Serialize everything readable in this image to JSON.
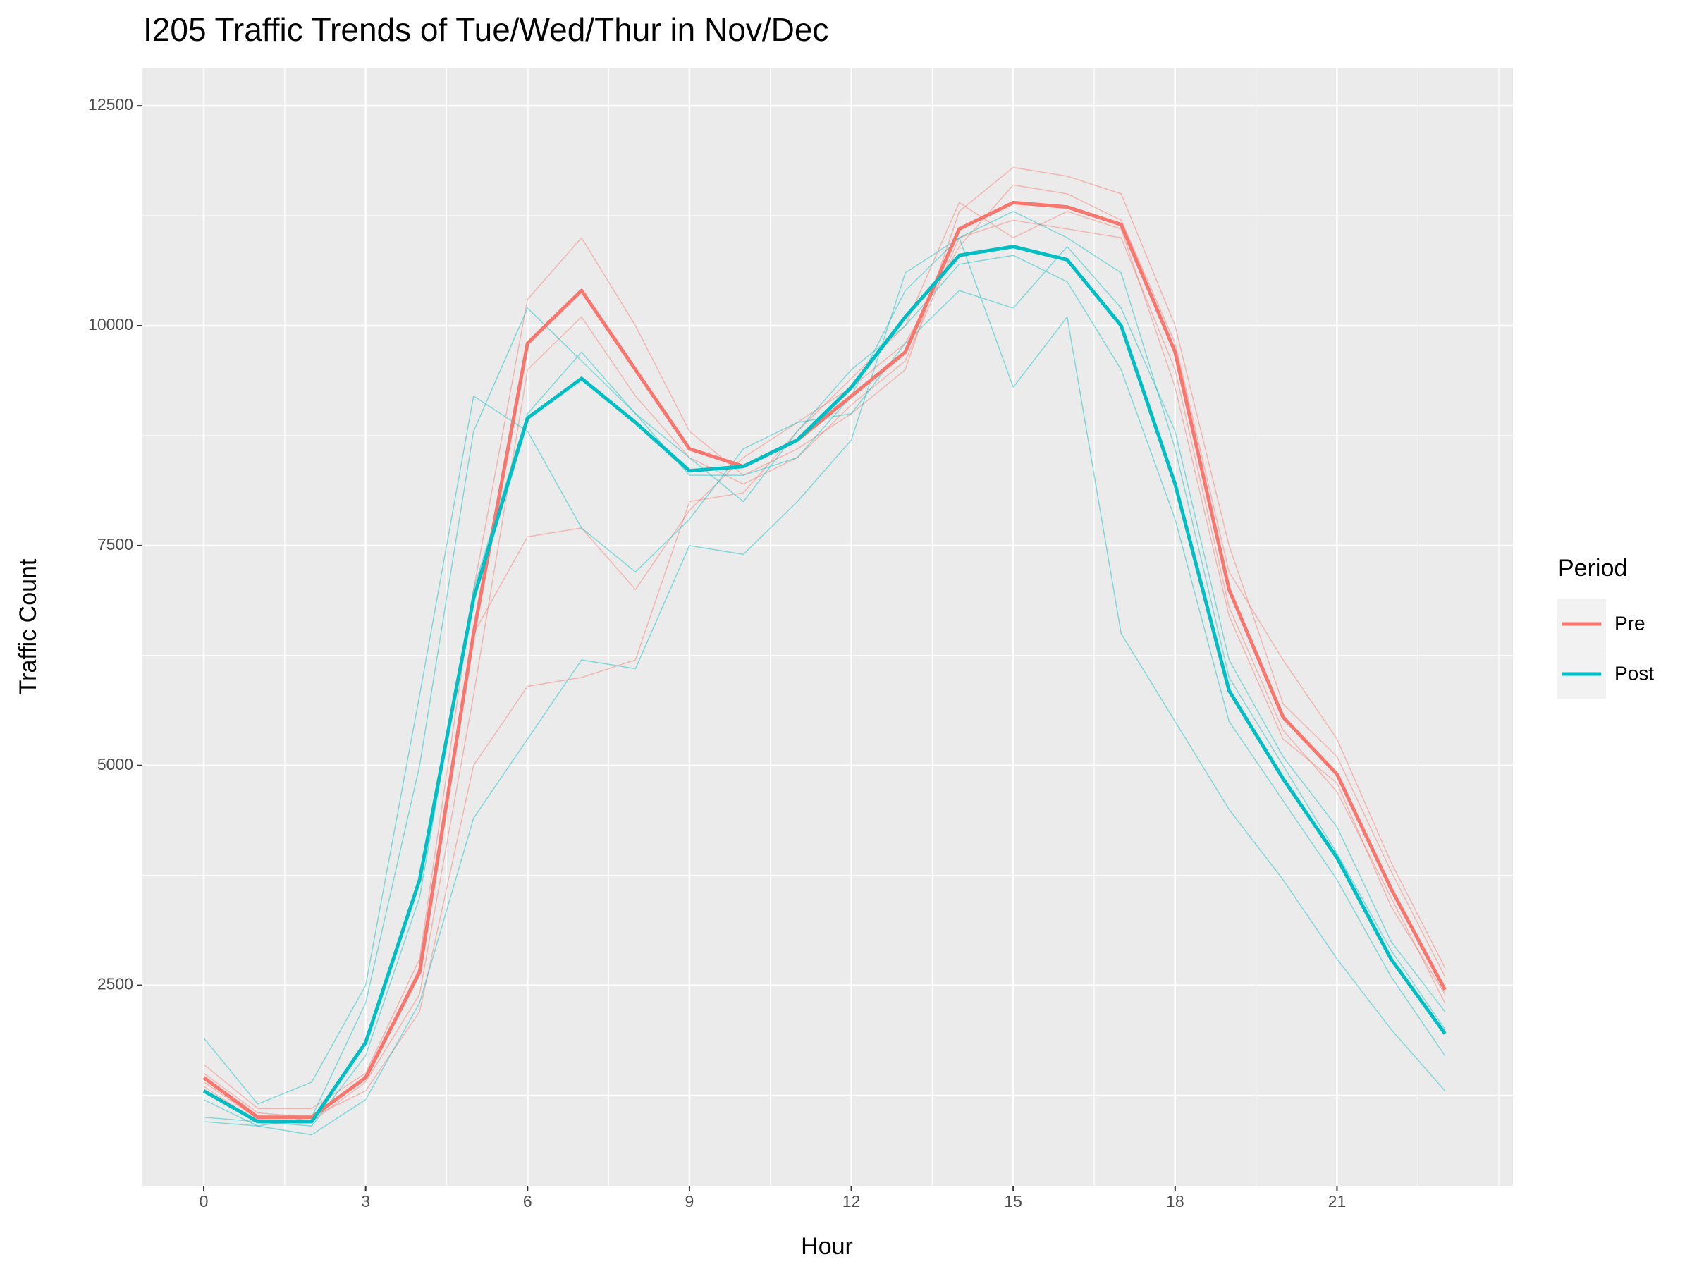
{
  "chart_data": {
    "type": "line",
    "title": "I205 Traffic Trends of Tue/Wed/Thur in Nov/Dec",
    "x_label": "Hour",
    "y_label": "Traffic Count",
    "x": [
      0,
      1,
      2,
      3,
      4,
      5,
      6,
      7,
      8,
      9,
      10,
      11,
      12,
      13,
      14,
      15,
      16,
      17,
      18,
      19,
      20,
      21,
      22,
      23
    ],
    "xlim": [
      -1.15,
      24.26
    ],
    "xticks": [
      0,
      3,
      6,
      9,
      12,
      15,
      18,
      21
    ],
    "ylim": [
      220,
      12934
    ],
    "yticks": [
      2500,
      5000,
      7500,
      10000,
      12500
    ],
    "grid": true,
    "legend_title": "Period",
    "legend": "right",
    "series": [
      {
        "name": "Pre",
        "color": "#f8766d",
        "values": [
          1450,
          1000,
          1000,
          1450,
          2650,
          6500,
          9800,
          10400,
          9500,
          8600,
          8400,
          8700,
          9200,
          9700,
          11100,
          11400,
          11350,
          11150,
          9700,
          7000,
          5550,
          4900,
          3600,
          2450
        ],
        "days": [
          [
            1600,
            1100,
            1100,
            1500,
            2800,
            7000,
            10300,
            11000,
            10000,
            8800,
            8300,
            8600,
            9000,
            9500,
            11300,
            11800,
            11700,
            11500,
            10000,
            7500,
            5700,
            5100,
            3800,
            2600
          ],
          [
            1350,
            950,
            950,
            1400,
            2400,
            5800,
            9500,
            10100,
            9200,
            8500,
            8200,
            8500,
            9100,
            9600,
            11000,
            11200,
            11100,
            11000,
            9500,
            6800,
            5400,
            4700,
            3500,
            2300
          ],
          [
            1500,
            1050,
            1000,
            1450,
            2700,
            6500,
            7600,
            7700,
            7000,
            7900,
            8500,
            8900,
            9300,
            9800,
            10900,
            11600,
            11500,
            11200,
            9800,
            7200,
            6200,
            5300,
            3900,
            2700
          ],
          [
            1400,
            980,
            1000,
            1300,
            2200,
            5000,
            5900,
            6000,
            6200,
            8000,
            8100,
            8800,
            9400,
            10000,
            11400,
            11000,
            11300,
            11100,
            9300,
            6700,
            5300,
            4800,
            3400,
            2400
          ]
        ]
      },
      {
        "name": "Post",
        "color": "#00bfc4",
        "values": [
          1300,
          950,
          950,
          1850,
          3700,
          6900,
          8950,
          9400,
          8900,
          8350,
          8400,
          8700,
          9300,
          10100,
          10800,
          10900,
          10750,
          10000,
          8200,
          5850,
          4850,
          3950,
          2800,
          1950
        ],
        "days": [
          [
            1200,
            900,
            1000,
            2300,
            5000,
            8800,
            10200,
            9600,
            9000,
            8300,
            8300,
            8500,
            9200,
            10400,
            11000,
            11300,
            11000,
            10600,
            8600,
            6000,
            5000,
            4000,
            2900,
            2000
          ],
          [
            1000,
            950,
            900,
            1700,
            3500,
            7000,
            9000,
            9700,
            9000,
            8500,
            8000,
            8800,
            9500,
            10000,
            10700,
            10800,
            10500,
            9500,
            7800,
            5500,
            4600,
            3700,
            2600,
            1700
          ],
          [
            1900,
            1150,
            1400,
            2500,
            5800,
            9200,
            8800,
            7700,
            7200,
            7800,
            8600,
            8900,
            9000,
            9800,
            10400,
            10200,
            10900,
            10200,
            8800,
            6200,
            5100,
            4300,
            3000,
            2200
          ],
          [
            950,
            900,
            800,
            1200,
            2300,
            4400,
            5300,
            6200,
            6100,
            7500,
            7400,
            8000,
            8700,
            10600,
            11000,
            9300,
            10100,
            6500,
            5500,
            4500,
            3700,
            2800,
            2000,
            1300
          ]
        ]
      }
    ]
  }
}
